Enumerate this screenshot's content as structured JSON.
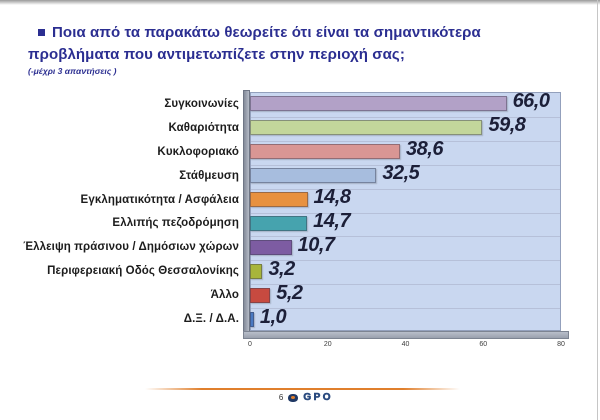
{
  "header": {
    "title": "Ποια από τα παρακάτω θεωρείτε ότι είναι τα σημαντικότερα προβλήματα που αντιμετωπίζετε στην περιοχή σας;",
    "subtitle": "(-μέχρι 3 απαντήσεις )"
  },
  "chart_data": {
    "type": "bar",
    "orientation": "horizontal",
    "title": "Ποια από τα παρακάτω θεωρείτε ότι είναι τα σημαντικότερα προβλήματα που αντιμετωπίζετε στην περιοχή σας; (-μέχρι 3 απαντήσεις)",
    "categories": [
      "Συγκοινωνίες",
      "Καθαριότητα",
      "Κυκλοφοριακό",
      "Στάθμευση",
      "Εγκληματικότητα / Ασφάλεια",
      "Ελλιπής πεζοδρόμηση",
      "Έλλειψη πράσινου / Δημόσιων χώρων",
      "Περιφερειακή Οδός Θεσσαλονίκης",
      "Άλλο",
      "Δ.Ξ. / Δ.Α."
    ],
    "values": [
      66.0,
      59.8,
      38.6,
      32.5,
      14.8,
      14.7,
      10.7,
      3.2,
      5.2,
      1.0
    ],
    "value_labels": [
      "66,0",
      "59,8",
      "38,6",
      "32,5",
      "14,8",
      "14,7",
      "10,7",
      "3,2",
      "5,2",
      "1,0"
    ],
    "bar_colors": [
      "#b2a1c7",
      "#c3d69b",
      "#d99694",
      "#a7bdde",
      "#e8913f",
      "#46a3ae",
      "#7d5ca2",
      "#a8b53a",
      "#c74a40",
      "#4a79c2"
    ],
    "xlim": [
      0,
      80
    ],
    "x_ticks": [
      "0",
      "20",
      "40",
      "60",
      "80"
    ],
    "plot_background": "#c9d7f0",
    "legend": "none",
    "grid": "category row dividers"
  },
  "footer": {
    "page_number": "6",
    "logo_text": "GPO"
  },
  "colors": {
    "title_text": "#2b2e91",
    "value_text": "#1c1f38",
    "accent_line": "#e07f2c",
    "axis_wall": "#9aa1ae"
  }
}
